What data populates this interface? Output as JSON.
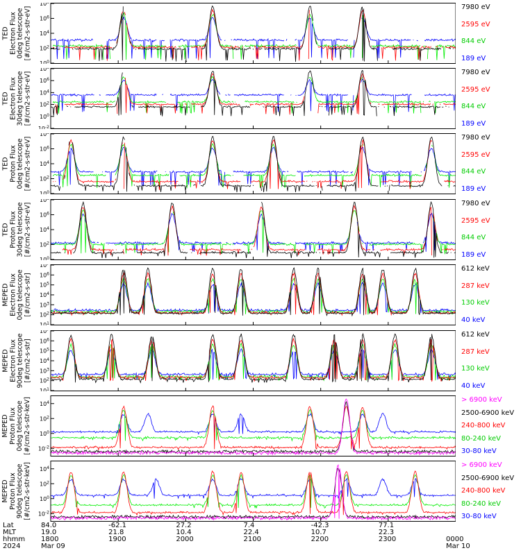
{
  "chart_data": [
    {
      "type": "line",
      "instrument": "TED",
      "ylabel": [
        "TED",
        "Electron Flux",
        "0deg telescope",
        "[#/cm2-s-str-eV]"
      ],
      "ylim": [
        1,
        100000000
      ],
      "yscale": "log",
      "yticks": [
        "10^8",
        "10^6",
        "10^4",
        "10^2",
        "10^0"
      ],
      "series": [
        {
          "name": "7980 eV",
          "color": "#000000",
          "baseline": 60,
          "peaks": [
            0.18,
            0.4,
            0.64,
            0.77
          ],
          "floor": 1.5,
          "drop": 0.9
        },
        {
          "name": "2595 eV",
          "color": "#ff0000",
          "baseline": 100,
          "peaks": [
            0.18,
            0.4,
            0.64,
            0.77
          ],
          "floor": 2,
          "drop": 0.85
        },
        {
          "name": "844 eV",
          "color": "#00ee00",
          "baseline": 150,
          "peaks": [
            0.18,
            0.4,
            0.64,
            0.77
          ],
          "floor": 2.5,
          "drop": 0.8
        },
        {
          "name": "189 eV",
          "color": "#0000ff",
          "baseline": 900,
          "peaks": [
            0.18,
            0.4,
            0.64,
            0.77
          ],
          "floor": 3,
          "drop": 0.6
        }
      ]
    },
    {
      "type": "line",
      "instrument": "TED",
      "ylabel": [
        "TED",
        "Electron Flux",
        "30deg telescope",
        "[#/cm2-s-str-eV]"
      ],
      "ylim": [
        0.01,
        100000000
      ],
      "yscale": "log",
      "yticks": [
        "10^8",
        "10^6",
        "10^4",
        "10^2",
        "10^0",
        "10^-2"
      ],
      "series": [
        {
          "name": "7980 eV",
          "color": "#000000",
          "baseline": 30,
          "peaks": [
            0.18,
            0.4,
            0.64,
            0.77
          ],
          "floor": 1,
          "drop": 0.9
        },
        {
          "name": "2595 eV",
          "color": "#ff0000",
          "baseline": 80,
          "peaks": [
            0.18,
            0.4,
            0.64,
            0.77
          ],
          "floor": 2,
          "drop": 0.85
        },
        {
          "name": "844 eV",
          "color": "#00ee00",
          "baseline": 200,
          "peaks": [
            0.18,
            0.4,
            0.64,
            0.77
          ],
          "floor": 3,
          "drop": 0.8
        },
        {
          "name": "189 eV",
          "color": "#0000ff",
          "baseline": 3000,
          "peaks": [
            0.18,
            0.4,
            0.64,
            0.77
          ],
          "floor": 5,
          "drop": 0.55
        }
      ]
    },
    {
      "type": "line",
      "instrument": "TED",
      "ylabel": [
        "TED",
        "Proton Flux",
        "0deg telescope",
        "[#/cm2-s-str-eV]"
      ],
      "ylim": [
        1,
        100000000
      ],
      "yscale": "log",
      "yticks": [
        "10^8",
        "10^6",
        "10^4",
        "10^2",
        "10^0"
      ],
      "series": [
        {
          "name": "7980 eV",
          "color": "#000000",
          "baseline": 8,
          "peaks": [
            0.05,
            0.18,
            0.4,
            0.55,
            0.77,
            0.94
          ],
          "floor": 1.5,
          "drop": 0.5
        },
        {
          "name": "2595 eV",
          "color": "#ff0000",
          "baseline": 30,
          "peaks": [
            0.05,
            0.18,
            0.4,
            0.55,
            0.77,
            0.94
          ],
          "floor": 3,
          "drop": 0.5
        },
        {
          "name": "844 eV",
          "color": "#00ee00",
          "baseline": 200,
          "peaks": [
            0.05,
            0.18,
            0.4,
            0.55,
            0.77,
            0.94
          ],
          "floor": 5,
          "drop": 0.4
        },
        {
          "name": "189 eV",
          "color": "#0000ff",
          "baseline": 600,
          "peaks": [
            0.05,
            0.18,
            0.4,
            0.55,
            0.77,
            0.94
          ],
          "floor": 10,
          "drop": 0.4
        }
      ]
    },
    {
      "type": "line",
      "instrument": "TED",
      "ylabel": [
        "TED",
        "Proton Flux",
        "30deg telescope",
        "[#/cm2-s-str-eV]"
      ],
      "ylim": [
        1,
        100000000
      ],
      "yscale": "log",
      "yticks": [
        "10^8",
        "10^6",
        "10^4",
        "10^2",
        "10^0"
      ],
      "series": [
        {
          "name": "7980 eV",
          "color": "#000000",
          "baseline": 6,
          "peaks": [
            0.08,
            0.3,
            0.52,
            0.75,
            0.94
          ],
          "floor": 1.5,
          "drop": 0.5
        },
        {
          "name": "2595 eV",
          "color": "#ff0000",
          "baseline": 15,
          "peaks": [
            0.08,
            0.3,
            0.52,
            0.75,
            0.94
          ],
          "floor": 3,
          "drop": 0.5
        },
        {
          "name": "844 eV",
          "color": "#00ee00",
          "baseline": 80,
          "peaks": [
            0.08,
            0.3,
            0.52,
            0.75,
            0.94
          ],
          "floor": 5,
          "drop": 0.3
        },
        {
          "name": "189 eV",
          "color": "#0000ff",
          "baseline": 120,
          "peaks": [
            0.08,
            0.3,
            0.52,
            0.75,
            0.94
          ],
          "floor": 10,
          "drop": 0.3
        }
      ]
    },
    {
      "type": "line",
      "instrument": "MEPED",
      "ylabel": [
        "MEPED",
        "Electron Flux",
        "0deg telescope",
        "[#/cm2-s-str]"
      ],
      "ylim": [
        10,
        10000000
      ],
      "yscale": "log",
      "yticks": [
        "10^7",
        "10^6",
        "10^5",
        "10^4",
        "10^3",
        "10^2",
        "10^1"
      ],
      "series": [
        {
          "name": "612 keV",
          "color": "#000000",
          "baseline": 100,
          "peaks": [
            0.18,
            0.24,
            0.4,
            0.47,
            0.6,
            0.66,
            0.77,
            0.82,
            0.9
          ],
          "floor": 80,
          "drop": 0
        },
        {
          "name": "287 keV",
          "color": "#ff0000",
          "baseline": 110,
          "peaks": [
            0.18,
            0.24,
            0.4,
            0.47,
            0.6,
            0.66,
            0.77,
            0.82,
            0.9
          ],
          "floor": 90,
          "drop": 0
        },
        {
          "name": "130 keV",
          "color": "#00ee00",
          "baseline": 150,
          "peaks": [
            0.18,
            0.24,
            0.4,
            0.47,
            0.6,
            0.66,
            0.77,
            0.82,
            0.9
          ],
          "floor": 100,
          "drop": 0
        },
        {
          "name": "40 keV",
          "color": "#0000ff",
          "baseline": 200,
          "peaks": [
            0.18,
            0.24,
            0.4,
            0.47,
            0.6,
            0.66,
            0.77,
            0.82,
            0.9
          ],
          "floor": 120,
          "drop": 0
        }
      ]
    },
    {
      "type": "line",
      "instrument": "MEPED",
      "ylabel": [
        "MEPED",
        "Electron Flux",
        "90deg telescope",
        "[#/cm2-s-str]"
      ],
      "ylim": [
        10,
        10000000
      ],
      "yscale": "log",
      "yticks": [
        "10^7",
        "10^6",
        "10^5",
        "10^4",
        "10^3",
        "10^2",
        "10^1"
      ],
      "series": [
        {
          "name": "612 keV",
          "color": "#000000",
          "baseline": 100,
          "peaks": [
            0.05,
            0.15,
            0.25,
            0.4,
            0.47,
            0.6,
            0.7,
            0.77,
            0.85,
            0.94
          ],
          "floor": 60,
          "drop": 0
        },
        {
          "name": "287 keV",
          "color": "#ff0000",
          "baseline": 150,
          "peaks": [
            0.05,
            0.15,
            0.25,
            0.4,
            0.47,
            0.6,
            0.7,
            0.77,
            0.85,
            0.94
          ],
          "floor": 80,
          "drop": 0
        },
        {
          "name": "130 keV",
          "color": "#00ee00",
          "baseline": 180,
          "peaks": [
            0.05,
            0.15,
            0.25,
            0.4,
            0.47,
            0.6,
            0.7,
            0.77,
            0.85,
            0.94
          ],
          "floor": 100,
          "drop": 0
        },
        {
          "name": "40 keV",
          "color": "#0000ff",
          "baseline": 300,
          "peaks": [
            0.05,
            0.15,
            0.25,
            0.4,
            0.47,
            0.6,
            0.7,
            0.77,
            0.85,
            0.94
          ],
          "floor": 120,
          "drop": 0
        }
      ]
    },
    {
      "type": "line",
      "instrument": "MEPED",
      "ylabel": [
        "MEPED",
        "Proton Flux",
        "0deg telescope",
        "[#/cm2-s-str-keV]"
      ],
      "ylim": [
        0.001,
        100000
      ],
      "yscale": "log",
      "yticks": [
        "10^4",
        "10^2",
        "10^0",
        "10^-2"
      ],
      "series": [
        {
          "name": "> 6900 keV",
          "color": "#ff00ff",
          "baseline": 0.002,
          "peaks": [
            0.73
          ],
          "floor": 0.002,
          "drop": 0
        },
        {
          "name": "2500-6900 keV",
          "color": "#000000",
          "baseline": 0.003,
          "peaks": [
            0.73
          ],
          "floor": 0.003,
          "drop": 0
        },
        {
          "name": "240-800 keV",
          "color": "#ff0000",
          "baseline": 0.01,
          "peaks": [
            0.18,
            0.4,
            0.64,
            0.73,
            0.77
          ],
          "floor": 0.006,
          "drop": 0
        },
        {
          "name": "80-240 keV",
          "color": "#00ee00",
          "baseline": 0.2,
          "peaks": [
            0.18,
            0.4,
            0.64,
            0.77
          ],
          "floor": 0.1,
          "drop": 0
        },
        {
          "name": "30-80 keV",
          "color": "#0000ff",
          "baseline": 1.2,
          "peaks": [
            0.18,
            0.24,
            0.4,
            0.47,
            0.64,
            0.77,
            0.82
          ],
          "floor": 0.8,
          "drop": 0
        }
      ]
    },
    {
      "type": "line",
      "instrument": "MEPED",
      "ylabel": [
        "MEPED",
        "Proton Flux",
        "90deg telescope",
        "[#/cm2-s-str-keV]"
      ],
      "ylim": [
        0.001,
        100000
      ],
      "yscale": "log",
      "yticks": [
        "10^4",
        "10^2",
        "10^0",
        "10^-2"
      ],
      "series": [
        {
          "name": "> 6900 keV",
          "color": "#ff00ff",
          "baseline": 0.002,
          "peaks": [
            0.71
          ],
          "floor": 0.002,
          "drop": 0
        },
        {
          "name": "2500-6900 keV",
          "color": "#000000",
          "baseline": 0.003,
          "peaks": [
            0.71
          ],
          "floor": 0.003,
          "drop": 0
        },
        {
          "name": "240-800 keV",
          "color": "#ff0000",
          "baseline": 0.01,
          "peaks": [
            0.05,
            0.18,
            0.4,
            0.47,
            0.64,
            0.73,
            0.9
          ],
          "floor": 0.006,
          "drop": 0
        },
        {
          "name": "80-240 keV",
          "color": "#00ee00",
          "baseline": 0.1,
          "peaks": [
            0.05,
            0.18,
            0.4,
            0.47,
            0.64,
            0.73,
            0.9
          ],
          "floor": 0.05,
          "drop": 0
        },
        {
          "name": "30-80 keV",
          "color": "#0000ff",
          "baseline": 2,
          "peaks": [
            0.05,
            0.18,
            0.26,
            0.4,
            0.47,
            0.64,
            0.73,
            0.82,
            0.9
          ],
          "floor": 1,
          "drop": 0
        }
      ]
    }
  ],
  "xaxis": {
    "row_labels": [
      "Lat",
      "MLT",
      "hhmm",
      "2024"
    ],
    "ticks": [
      {
        "lat": "84.0",
        "mlt": "19.0",
        "hhmm": "1800",
        "date": "Mar 09"
      },
      {
        "lat": "-62.1",
        "mlt": "21.8",
        "hhmm": "1900",
        "date": ""
      },
      {
        "lat": "27.2",
        "mlt": "10.4",
        "hhmm": "2000",
        "date": ""
      },
      {
        "lat": "7.4",
        "mlt": "22.4",
        "hhmm": "2100",
        "date": ""
      },
      {
        "lat": "-42.3",
        "mlt": "10.7",
        "hhmm": "2200",
        "date": ""
      },
      {
        "lat": "77.1",
        "mlt": "22.3",
        "hhmm": "2300",
        "date": ""
      },
      {
        "lat": "",
        "mlt": "",
        "hhmm": "0000",
        "date": "Mar 10"
      }
    ]
  }
}
